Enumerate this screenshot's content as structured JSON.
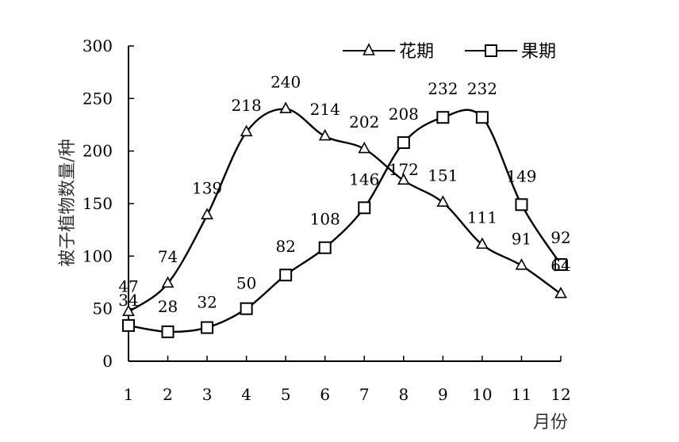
{
  "chart_data": {
    "type": "line",
    "categories": [
      "1",
      "2",
      "3",
      "4",
      "5",
      "6",
      "7",
      "8",
      "9",
      "10",
      "11",
      "12"
    ],
    "x": [
      1,
      2,
      3,
      4,
      5,
      6,
      7,
      8,
      9,
      10,
      11,
      12
    ],
    "series": [
      {
        "name": "花期",
        "marker": "triangle",
        "values": [
          47,
          74,
          139,
          218,
          240,
          214,
          202,
          172,
          151,
          111,
          91,
          64
        ]
      },
      {
        "name": "果期",
        "marker": "square",
        "values": [
          34,
          28,
          32,
          50,
          82,
          108,
          146,
          208,
          232,
          232,
          149,
          92
        ]
      }
    ],
    "yticks": [
      "0",
      "50",
      "100",
      "150",
      "200",
      "250",
      "300"
    ],
    "ylim": [
      0,
      300
    ],
    "xlabel": "月份",
    "ylabel": "被子植物数量/种",
    "legend_position": "top-right",
    "grid": false,
    "line_color": "#000000"
  }
}
